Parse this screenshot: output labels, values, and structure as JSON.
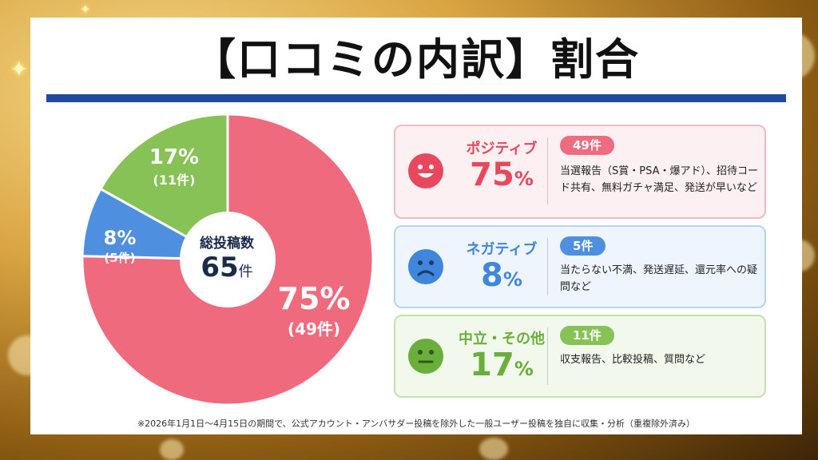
{
  "title": "【口コミの内訳】割合",
  "center": {
    "label": "総投稿数",
    "value": "65",
    "unit": "件"
  },
  "chart_data": {
    "type": "pie",
    "total": 65,
    "slices": [
      {
        "pct_label": "75%",
        "count_label": "(49件)",
        "value": 49,
        "percent": 75,
        "color": "#ef6a7d"
      },
      {
        "pct_label": "8%",
        "count_label": "(5件)",
        "value": 5,
        "percent": 8,
        "color": "#4f8fe0"
      },
      {
        "pct_label": "17%",
        "count_label": "(11件)",
        "value": 11,
        "percent": 17,
        "color": "#86c255"
      }
    ]
  },
  "categories": [
    {
      "name": "ポジティブ",
      "percent": "75",
      "percent_unit": "%",
      "badge": "49件",
      "description": "当選報告（S賞・PSA・爆アド）、招待コード共有、無料ガチャ満足、発送が早いなど",
      "accent": "#e8475d",
      "bg": "#fdf0f2",
      "border": "#f2b9c2",
      "face": "smile-face-icon"
    },
    {
      "name": "ネガティブ",
      "percent": "8",
      "percent_unit": "%",
      "badge": "5件",
      "description": "当たらない不満、発送遅延、還元率への疑問など",
      "accent": "#3f86dc",
      "bg": "#eef5fd",
      "border": "#b6d3f3",
      "face": "sad-face-icon"
    },
    {
      "name": "中立・その他",
      "percent": "17",
      "percent_unit": "%",
      "badge": "11件",
      "description": "収支報告、比較投稿、質問など",
      "accent": "#6aae3c",
      "bg": "#f2f9ec",
      "border": "#c5e2ad",
      "face": "neutral-face-icon"
    }
  ],
  "footnote": "※2026年1月1日〜4月15日の期間で、公式アカウント・アンバサダー投稿を除外した一般ユーザー投稿を独自に収集・分析（重複除外済み）"
}
